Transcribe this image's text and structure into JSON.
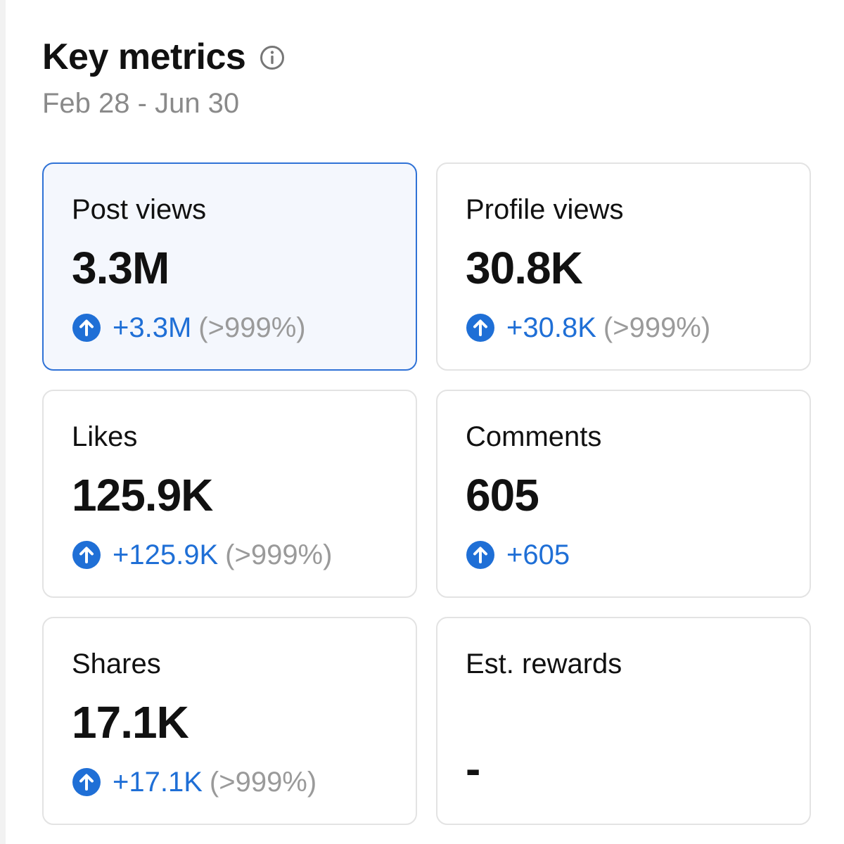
{
  "header": {
    "title": "Key metrics",
    "date_range": "Feb 28 - Jun 30"
  },
  "colors": {
    "accent": "#1f6fd6",
    "selected_border": "#2f72d6",
    "selected_bg": "#f4f7fd",
    "muted": "#9a9a9a"
  },
  "metrics": [
    {
      "label": "Post views",
      "value": "3.3M",
      "delta": "+3.3M",
      "delta_pct": "(>999%)",
      "selected": true,
      "icon": "arrow-up-circle-icon"
    },
    {
      "label": "Profile views",
      "value": "30.8K",
      "delta": "+30.8K",
      "delta_pct": "(>999%)",
      "selected": false,
      "icon": "arrow-up-circle-icon"
    },
    {
      "label": "Likes",
      "value": "125.9K",
      "delta": "+125.9K",
      "delta_pct": "(>999%)",
      "selected": false,
      "icon": "arrow-up-circle-icon"
    },
    {
      "label": "Comments",
      "value": "605",
      "delta": "+605",
      "delta_pct": "",
      "selected": false,
      "icon": "arrow-up-circle-icon"
    },
    {
      "label": "Shares",
      "value": "17.1K",
      "delta": "+17.1K",
      "delta_pct": "(>999%)",
      "selected": false,
      "icon": "arrow-up-circle-icon"
    },
    {
      "label": "Est. rewards",
      "value": "-",
      "delta": "",
      "delta_pct": "",
      "selected": false,
      "icon": ""
    }
  ]
}
